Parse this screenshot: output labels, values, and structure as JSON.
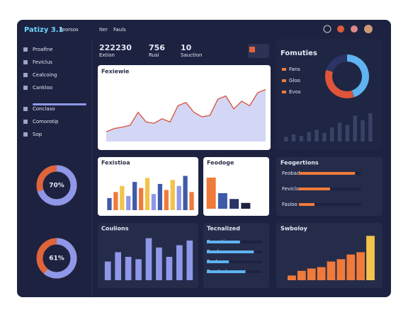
{
  "header": {
    "brand": "Patizy 3.1",
    "subtitle": "Feorsos",
    "nav": [
      "Iter",
      "Fauls"
    ]
  },
  "sidebar": {
    "items": [
      "Proafine",
      "Feviclus",
      "Cealcoing",
      "Cankloo",
      "Conclaso",
      "Comorotip",
      "Sop"
    ],
    "donuts": [
      {
        "label": "70%",
        "value": 70
      },
      {
        "label": "61%",
        "value": 61
      }
    ]
  },
  "stats": [
    {
      "value": "222230",
      "label": "Extion"
    },
    {
      "value": "756",
      "label": "Rusi"
    },
    {
      "value": "10",
      "label": "Sauction"
    }
  ],
  "line_chart": {
    "title": "Fexiewie",
    "ylim": [
      0,
      100
    ],
    "values": [
      15,
      20,
      22,
      25,
      45,
      30,
      28,
      35,
      30,
      55,
      60,
      45,
      38,
      40,
      65,
      70,
      50,
      62,
      55,
      75,
      80
    ]
  },
  "fomuties": {
    "title": "Fomuties",
    "legend": [
      "Fans",
      "Gloo",
      "Evos"
    ],
    "donut": [
      45,
      35,
      20
    ],
    "bars": [
      10,
      15,
      12,
      20,
      25,
      18,
      30,
      40,
      35,
      55,
      45,
      60
    ]
  },
  "fexistioa": {
    "title": "Fexistioa",
    "ylim": [
      0,
      100
    ],
    "values": [
      30,
      45,
      60,
      35,
      70,
      55,
      80,
      40,
      65,
      50,
      75,
      60,
      85,
      45
    ]
  },
  "feodoge": {
    "title": "Feodoge",
    "ylim": [
      0,
      100
    ],
    "values": [
      80,
      40,
      25,
      15
    ]
  },
  "feogertions": {
    "title": "Feogertions",
    "labels": [
      "Feobad",
      "Feviclo",
      "Fasloo"
    ],
    "values": [
      90,
      50,
      25
    ],
    "xlim": [
      0,
      100
    ]
  },
  "coulions": {
    "title": "Coulions",
    "ylim": [
      0,
      100
    ],
    "values": [
      40,
      60,
      50,
      45,
      90,
      70,
      50,
      75,
      85
    ]
  },
  "tecnalized": {
    "title": "Tecnalized",
    "labels": [
      "Foonction",
      "Faudoss",
      "Fouloss",
      "Fesoloeios"
    ],
    "values": [
      60,
      85,
      40,
      70
    ],
    "xlim": [
      0,
      100
    ]
  },
  "swboloy": {
    "title": "Swboloy",
    "ylim": [
      0,
      100
    ],
    "values": [
      10,
      20,
      25,
      28,
      40,
      45,
      55,
      60,
      95
    ]
  }
}
